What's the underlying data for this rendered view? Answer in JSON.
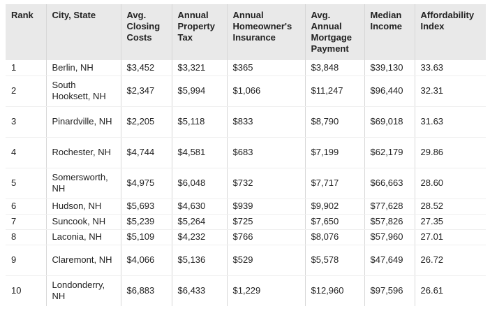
{
  "table": {
    "headers": [
      "Rank",
      "City, State",
      "Avg. Closing Costs",
      "Annual Property Tax",
      "Annual Homeowner's Insurance",
      "Avg. Annual Mortgage Payment",
      "Median Income",
      "Affordability Index"
    ],
    "rows": [
      [
        "1",
        "Berlin, NH",
        "$3,452",
        "$3,321",
        "$365",
        "$3,848",
        "$39,130",
        "33.63"
      ],
      [
        "2",
        "South Hooksett, NH",
        "$2,347",
        "$5,994",
        "$1,066",
        "$11,247",
        "$96,440",
        "32.31"
      ],
      [
        "3",
        "Pinardville, NH",
        "$2,205",
        "$5,118",
        "$833",
        "$8,790",
        "$69,018",
        "31.63"
      ],
      [
        "4",
        "Rochester, NH",
        "$4,744",
        "$4,581",
        "$683",
        "$7,199",
        "$62,179",
        "29.86"
      ],
      [
        "5",
        "Somersworth, NH",
        "$4,975",
        "$6,048",
        "$732",
        "$7,717",
        "$66,663",
        "28.60"
      ],
      [
        "6",
        "Hudson, NH",
        "$5,693",
        "$4,630",
        "$939",
        "$9,902",
        "$77,628",
        "28.52"
      ],
      [
        "7",
        "Suncook, NH",
        "$5,239",
        "$5,264",
        "$725",
        "$7,650",
        "$57,826",
        "27.35"
      ],
      [
        "8",
        "Laconia, NH",
        "$5,109",
        "$4,232",
        "$766",
        "$8,076",
        "$57,960",
        "27.01"
      ],
      [
        "9",
        "Claremont, NH",
        "$4,066",
        "$5,136",
        "$529",
        "$5,578",
        "$47,649",
        "26.72"
      ],
      [
        "10",
        "Londonderry, NH",
        "$6,883",
        "$6,433",
        "$1,229",
        "$12,960",
        "$97,596",
        "26.61"
      ]
    ]
  }
}
